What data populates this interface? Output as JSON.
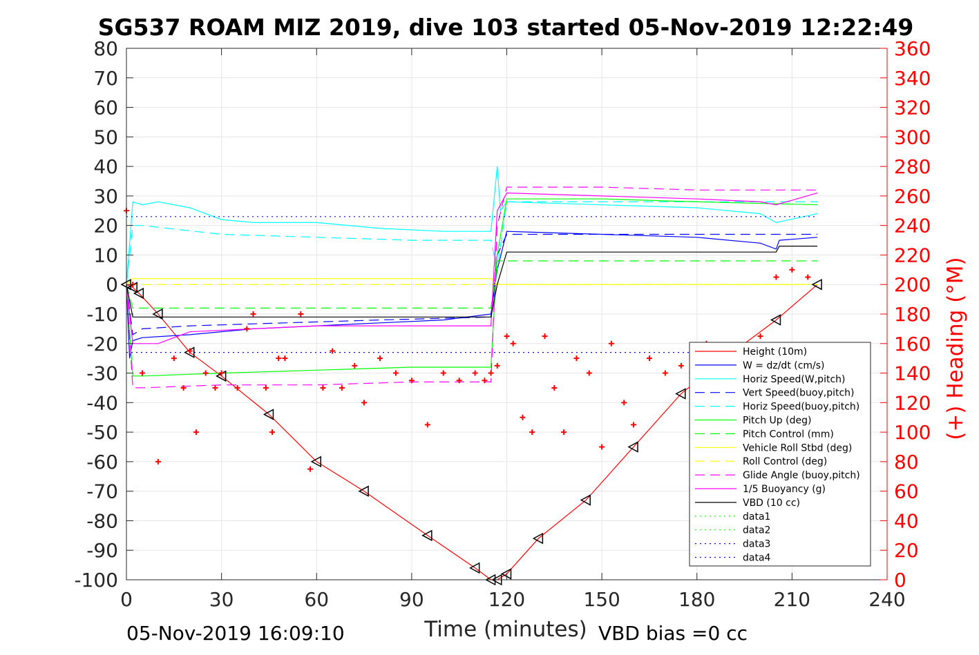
{
  "chart_data": {
    "type": "line",
    "title": "SG537 ROAM MIZ 2019, dive 103 started 05-Nov-2019 12:22:49",
    "xlabel": "Time (minutes)",
    "ylabel": "",
    "y2label": "(+) Heading (°M)",
    "xlim": [
      0,
      240
    ],
    "ylim": [
      -100,
      80
    ],
    "y2lim": [
      0,
      360
    ],
    "x_ticks": [
      "0",
      "30",
      "60",
      "90",
      "120",
      "150",
      "180",
      "210",
      "240"
    ],
    "y_ticks": [
      "80",
      "70",
      "60",
      "50",
      "40",
      "30",
      "20",
      "10",
      "0",
      "-10",
      "-20",
      "-30",
      "-40",
      "-50",
      "-60",
      "-70",
      "-80",
      "-90",
      "-100"
    ],
    "y2_ticks": [
      "360",
      "340",
      "320",
      "300",
      "280",
      "260",
      "240",
      "220",
      "200",
      "180",
      "160",
      "140",
      "120",
      "100",
      "80",
      "60",
      "40",
      "20",
      "0"
    ],
    "grid": true,
    "legend_position": "lower-right",
    "footer_left": "05-Nov-2019 16:09:10",
    "footer_right": "VBD bias =0 cc",
    "colors": {
      "accent_axis": "#ff0000"
    },
    "series": [
      {
        "name": "Height (10m)",
        "color": "#ff0000",
        "style": "solid",
        "x": [
          0,
          2,
          4,
          10,
          20,
          30,
          45,
          60,
          75,
          95,
          110,
          115,
          117,
          120,
          130,
          145,
          160,
          175,
          190,
          205,
          218
        ],
        "y": [
          0,
          -1,
          -3,
          -10,
          -23,
          -31,
          -44,
          -60,
          -70,
          -85,
          -96,
          -100,
          -100,
          -98,
          -86,
          -73,
          -55,
          -37,
          -24,
          -12,
          0
        ]
      },
      {
        "name": "W = dz/dt (cm/s)",
        "color": "#0000ff",
        "style": "solid",
        "x": [
          0,
          1,
          2,
          5,
          20,
          40,
          60,
          80,
          100,
          115,
          117,
          120,
          150,
          180,
          200,
          205,
          206,
          218
        ],
        "y": [
          0,
          -25,
          -19,
          -18,
          -17,
          -15,
          -14,
          -13,
          -12,
          -10,
          5,
          18,
          17,
          16,
          14,
          12,
          15,
          16
        ]
      },
      {
        "name": "Horiz Speed(W,pitch)",
        "color": "#00ffff",
        "style": "solid",
        "x": [
          0,
          2,
          5,
          10,
          20,
          30,
          40,
          60,
          80,
          100,
          115,
          117,
          118,
          120,
          150,
          180,
          200,
          205,
          218
        ],
        "y": [
          0,
          28,
          27,
          28,
          26,
          22,
          21,
          21,
          19,
          18,
          18,
          40,
          25,
          28,
          27,
          26,
          24,
          21,
          24
        ]
      },
      {
        "name": "Vert Speed(buoy,pitch)",
        "color": "#0000ff",
        "style": "dashed",
        "x": [
          0,
          2,
          5,
          20,
          50,
          80,
          115,
          117,
          120,
          150,
          180,
          218
        ],
        "y": [
          0,
          -17,
          -15,
          -14,
          -13,
          -12,
          -11,
          10,
          17,
          17,
          17,
          17
        ]
      },
      {
        "name": "Horiz Speed(buoy,pitch)",
        "color": "#00ffff",
        "style": "dashed",
        "x": [
          0,
          2,
          5,
          30,
          60,
          90,
          115,
          117,
          120,
          218
        ],
        "y": [
          0,
          20,
          20,
          17,
          16,
          15,
          15,
          5,
          28,
          28
        ]
      },
      {
        "name": "Pitch Up (deg)",
        "color": "#00ff00",
        "style": "solid",
        "x": [
          0,
          2,
          5,
          30,
          60,
          90,
          115,
          117,
          120,
          150,
          180,
          218
        ],
        "y": [
          0,
          -31,
          -31,
          -30,
          -29,
          -28,
          -28,
          10,
          29,
          29,
          28,
          27
        ]
      },
      {
        "name": "Pitch Control (mm)",
        "color": "#00ff00",
        "style": "dashed",
        "x": [
          0,
          2,
          5,
          60,
          115,
          117,
          120,
          180,
          218
        ],
        "y": [
          0,
          -8,
          -8,
          -8,
          -8,
          8,
          8,
          8,
          8
        ]
      },
      {
        "name": "Vehicle Roll Stbd (deg)",
        "color": "#ffff00",
        "style": "solid",
        "x": [
          0,
          2,
          10,
          30,
          60,
          90,
          115,
          117,
          120,
          150,
          180,
          218
        ],
        "y": [
          0,
          2,
          2,
          2,
          2,
          2,
          2,
          0,
          0,
          0,
          0,
          0
        ]
      },
      {
        "name": "Roll Control (deg)",
        "color": "#ffff00",
        "style": "dashed",
        "x": [
          0,
          2,
          218
        ],
        "y": [
          0,
          0,
          0
        ]
      },
      {
        "name": "Glide Angle (buoy,pitch)",
        "color": "#ff00ff",
        "style": "dashed",
        "x": [
          0,
          2,
          5,
          30,
          60,
          90,
          115,
          117,
          120,
          150,
          180,
          218
        ],
        "y": [
          0,
          -35,
          -35,
          -34,
          -34,
          -33,
          -33,
          20,
          33,
          33,
          32,
          32
        ]
      },
      {
        "name": "1/5 Buoyancy (g)",
        "color": "#ff00ff",
        "style": "solid",
        "x": [
          0,
          2,
          10,
          20,
          40,
          60,
          80,
          115,
          117,
          120,
          150,
          180,
          200,
          205,
          218
        ],
        "y": [
          0,
          -20,
          -20,
          -16,
          -15,
          -14,
          -14,
          -14,
          25,
          31,
          30,
          29,
          28,
          27,
          31
        ]
      },
      {
        "name": "VBD (10 cc)",
        "color": "#000000",
        "style": "solid",
        "x": [
          0,
          2,
          5,
          115,
          117,
          120,
          205,
          206,
          218
        ],
        "y": [
          0,
          -11,
          -11,
          -11,
          0,
          11,
          11,
          13,
          13
        ]
      },
      {
        "name": "data1",
        "color": "#00ff00",
        "style": "dotted",
        "x": [],
        "y": []
      },
      {
        "name": "data2",
        "color": "#00ff00",
        "style": "dotted",
        "x": [],
        "y": []
      },
      {
        "name": "data3",
        "color": "#0000ff",
        "style": "dotted",
        "x": [
          0,
          218
        ],
        "y": [
          23,
          23
        ]
      },
      {
        "name": "data4",
        "color": "#0000ff",
        "style": "dotted",
        "x": [
          0,
          218
        ],
        "y": [
          -23,
          -23
        ]
      }
    ],
    "heading_series": {
      "name": "Heading",
      "color": "#ff0000",
      "axis": "right",
      "x": [
        0,
        2,
        5,
        10,
        15,
        18,
        20,
        22,
        25,
        28,
        30,
        35,
        38,
        40,
        44,
        46,
        48,
        50,
        55,
        58,
        62,
        65,
        68,
        72,
        75,
        80,
        85,
        90,
        95,
        100,
        105,
        110,
        113,
        115,
        117,
        120,
        122,
        125,
        128,
        132,
        135,
        138,
        142,
        146,
        150,
        153,
        157,
        160,
        165,
        170,
        175,
        180,
        183,
        186,
        190,
        195,
        200,
        205,
        210,
        215
      ],
      "y": [
        250,
        200,
        140,
        80,
        150,
        130,
        155,
        100,
        140,
        130,
        140,
        130,
        170,
        180,
        130,
        100,
        150,
        150,
        180,
        75,
        130,
        155,
        130,
        145,
        120,
        150,
        140,
        135,
        105,
        140,
        135,
        140,
        135,
        140,
        145,
        165,
        160,
        110,
        100,
        165,
        130,
        100,
        150,
        140,
        90,
        160,
        120,
        105,
        150,
        140,
        145,
        145,
        160,
        135,
        140,
        145,
        165,
        205,
        210,
        205
      ]
    }
  }
}
